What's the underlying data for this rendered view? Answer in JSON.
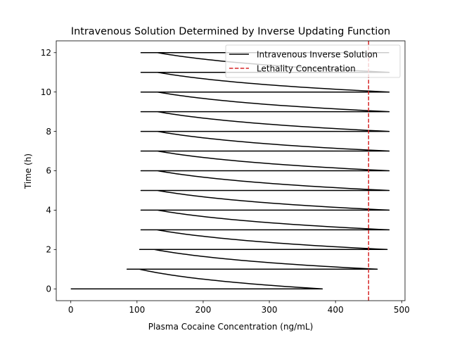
{
  "chart_data": {
    "type": "line",
    "title": "Intravenous Solution Determined by Inverse Updating Function",
    "xlabel": "Plasma Cocaine Concentration (ng/mL)",
    "ylabel": "Time (h)",
    "xlim": [
      -22,
      505
    ],
    "ylim": [
      -0.6,
      12.6
    ],
    "xticks": [
      0,
      100,
      200,
      300,
      400,
      500
    ],
    "yticks": [
      0,
      2,
      4,
      6,
      8,
      10,
      12
    ],
    "grid": false,
    "legend_placement": "upper right",
    "series": [
      {
        "name": "Intravenous Inverse Solution",
        "color": "#000000",
        "style": "solid",
        "decay_rate_per_h": 1.3,
        "doses": [
          {
            "t": 0,
            "from": 0,
            "to": 380
          },
          {
            "t": 1,
            "from": 85,
            "to": 463
          },
          {
            "t": 2,
            "from": 104,
            "to": 478
          },
          {
            "t": 3,
            "from": 106,
            "to": 481
          },
          {
            "t": 4,
            "from": 106,
            "to": 481
          },
          {
            "t": 5,
            "from": 106,
            "to": 481
          },
          {
            "t": 6,
            "from": 106,
            "to": 481
          },
          {
            "t": 7,
            "from": 106,
            "to": 481
          },
          {
            "t": 8,
            "from": 106,
            "to": 481
          },
          {
            "t": 9,
            "from": 106,
            "to": 481
          },
          {
            "t": 10,
            "from": 106,
            "to": 481
          },
          {
            "t": 11,
            "from": 106,
            "to": 481
          },
          {
            "t": 12,
            "from": 106,
            "to": 481
          }
        ],
        "end_time": 12
      },
      {
        "name": "Lethality Concentration",
        "color": "#d62728",
        "style": "dashed",
        "x": 450
      }
    ]
  }
}
